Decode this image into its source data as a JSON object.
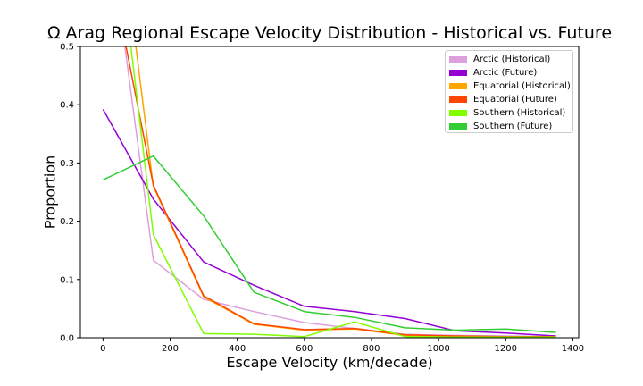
{
  "chart_data": {
    "type": "line",
    "title": "Ω Arag Regional Escape Velocity Distribution - Historical vs. Future",
    "xlabel": "Escape Velocity (km/decade)",
    "ylabel": "Proportion",
    "xlim": [
      -67.5,
      1417.5
    ],
    "ylim": [
      0,
      0.5
    ],
    "xticks": [
      0,
      200,
      400,
      600,
      800,
      1000,
      1200,
      1400
    ],
    "yticks": [
      0.0,
      0.1,
      0.2,
      0.3,
      0.4,
      0.5
    ],
    "x": [
      0,
      150,
      300,
      450,
      600,
      750,
      900,
      1050,
      1200,
      1350
    ],
    "legend_position": "upper right",
    "grid": false,
    "series": [
      {
        "name": "Arctic (Historical)",
        "color": "#dda0dd",
        "values": [
          0.78,
          0.133,
          0.066,
          0.045,
          0.026,
          0.016,
          0.006,
          0.004,
          0.003,
          0.002
        ]
      },
      {
        "name": "Arctic (Future)",
        "color": "#9400d3",
        "values": [
          0.392,
          0.238,
          0.13,
          0.09,
          0.054,
          0.045,
          0.033,
          0.012,
          0.008,
          0.003
        ]
      },
      {
        "name": "Equatorial (Historical)",
        "color": "#ffa500",
        "values": [
          0.95,
          0.26,
          0.07,
          0.023,
          0.013,
          0.015,
          0.004,
          0.002,
          0.001,
          0.001
        ]
      },
      {
        "name": "Equatorial (Future)",
        "color": "#ff4500",
        "values": [
          0.7,
          0.262,
          0.072,
          0.024,
          0.014,
          0.016,
          0.005,
          0.003,
          0.002,
          0.002
        ]
      },
      {
        "name": "Southern (Historical)",
        "color": "#7fff00",
        "values": [
          0.9,
          0.177,
          0.007,
          0.006,
          0.002,
          0.027,
          0.002,
          0.001,
          0.001,
          0.001
        ]
      },
      {
        "name": "Southern (Future)",
        "color": "#32cd32",
        "values": [
          0.271,
          0.312,
          0.209,
          0.078,
          0.045,
          0.035,
          0.017,
          0.013,
          0.015,
          0.009
        ]
      }
    ]
  }
}
